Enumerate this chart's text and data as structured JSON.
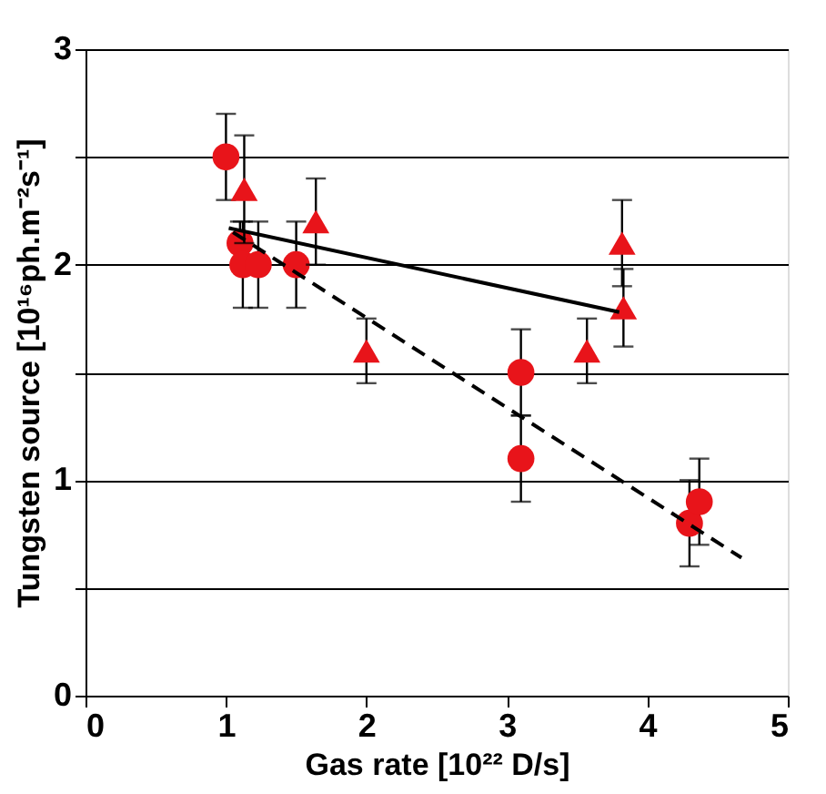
{
  "chart_data": {
    "type": "scatter",
    "xlabel": "Gas rate [10²² D/s]",
    "ylabel": "Tungsten source [10¹⁶ph.m⁻²s⁻¹]",
    "xlim": [
      0,
      5
    ],
    "xticks": [
      0,
      1,
      2,
      3,
      4,
      5
    ],
    "ylim": [
      0,
      3
    ],
    "yticks": [
      0,
      {
        "value": 0.5,
        "label": null
      },
      1,
      {
        "value": 1.5,
        "label": null
      },
      2,
      {
        "value": 2.5,
        "label": null
      },
      3
    ],
    "grid": "y",
    "series": [
      {
        "marker": "circle",
        "color": "#e8141a",
        "x": [
          1.0,
          1.1,
          1.12,
          1.23,
          1.5,
          3.1,
          3.1,
          4.3,
          4.37
        ],
        "values": [
          2.5,
          2.1,
          2.0,
          2.0,
          2.0,
          1.5,
          1.1,
          0.8,
          0.9
        ],
        "errors": [
          0.2,
          0.1,
          0.2,
          0.2,
          0.2,
          0.2,
          0.2,
          0.2,
          0.2
        ]
      },
      {
        "marker": "triangle",
        "color": "#e8141a",
        "x": [
          1.13,
          1.64,
          2.0,
          3.57,
          3.82,
          3.83
        ],
        "values": [
          2.35,
          2.2,
          1.6,
          1.6,
          2.1,
          1.8
        ],
        "errors": [
          0.25,
          0.2,
          0.15,
          0.15,
          0.2,
          0.18
        ]
      },
      {
        "type": "line",
        "line_style": "solid",
        "color": "#000000",
        "x": [
          1.02,
          3.8
        ],
        "values": [
          2.17,
          1.78
        ]
      },
      {
        "type": "line",
        "line_style": "dashed",
        "color": "#000000",
        "x": [
          1.05,
          4.67
        ],
        "values": [
          2.15,
          0.64
        ]
      }
    ]
  }
}
